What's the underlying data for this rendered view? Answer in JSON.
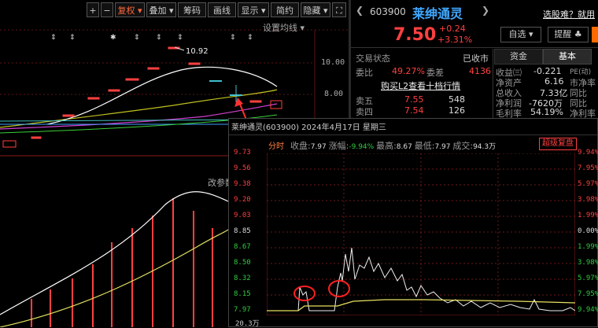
{
  "toolbar": {
    "plus": "+",
    "minus": "−",
    "restore": "复权",
    "overlay": "叠加",
    "chips": "筹码",
    "draw": "画线",
    "display": "显示",
    "simple": "简约",
    "hide": "隐藏"
  },
  "main_chart": {
    "settings": "设置均线",
    "peak_label": "10.92",
    "y_labels": [
      "10.00",
      "8.00"
    ],
    "indicator_label": "改参数"
  },
  "quote": {
    "code": "603900",
    "name": "莱绅通灵",
    "price": "7.50",
    "change": "+0.24",
    "change_pct": "+3.31%",
    "select_btn": "自选",
    "alert_btn": "提醒",
    "stock_pick_link": "选股难？就用"
  },
  "trade": {
    "status_label": "交易状态",
    "status_value": "已收市",
    "weibi_label": "委比",
    "weibi_value": "49.27%",
    "weicha_label": "委差",
    "weicha_value": "4136",
    "l2_link": "购买L2查看十档行情",
    "rows": [
      {
        "label": "卖五",
        "price": "7.55",
        "vol": "548"
      },
      {
        "label": "卖四",
        "price": "7.54",
        "vol": "126"
      }
    ]
  },
  "tabs": {
    "funds": "资金",
    "fundamentals": "基本"
  },
  "fundamentals": [
    {
      "label": "收益㈢",
      "value": "-0.221",
      "label2": "PE(动)"
    },
    {
      "label": "净资产",
      "value": "6.16",
      "label2": "市净率"
    },
    {
      "label": "总收入",
      "value": "7.33亿",
      "label2": "同比"
    },
    {
      "label": "净利润",
      "value": "-7620万",
      "label2": "同比"
    },
    {
      "label": "毛利率",
      "value": "54.19%",
      "label2": "净利率"
    }
  ],
  "popup": {
    "title": "莱绅通灵(603900)  2024年4月17日 星期三",
    "tab_label": "分时",
    "close_label": "收盘:",
    "close_value": "7.97",
    "chg_label": "涨幅:",
    "chg_value": "-9.94%",
    "high_label": "最高:",
    "high_value": "8.67",
    "low_label": "最低:",
    "low_value": "7.97",
    "vol_label": "成交:",
    "vol_value": "94.3万",
    "replay_btn": "超级复盘",
    "y_left": [
      "9.73",
      "9.56",
      "9.38",
      "9.20",
      "9.03",
      "8.85",
      "8.67",
      "8.50",
      "8.32",
      "8.15",
      "7.97"
    ],
    "y_right": [
      "9.94%",
      "7.95%",
      "5.97%",
      "3.98%",
      "1.99%",
      "0.00%",
      "1.99%",
      "3.98%",
      "5.97%",
      "7.95%",
      "9.94%"
    ],
    "vol_axis": "20.3万"
  },
  "colors": {
    "up": "#ff4040",
    "down": "#2ecc40",
    "accent": "#ff6a3d",
    "name": "#f0c020"
  }
}
